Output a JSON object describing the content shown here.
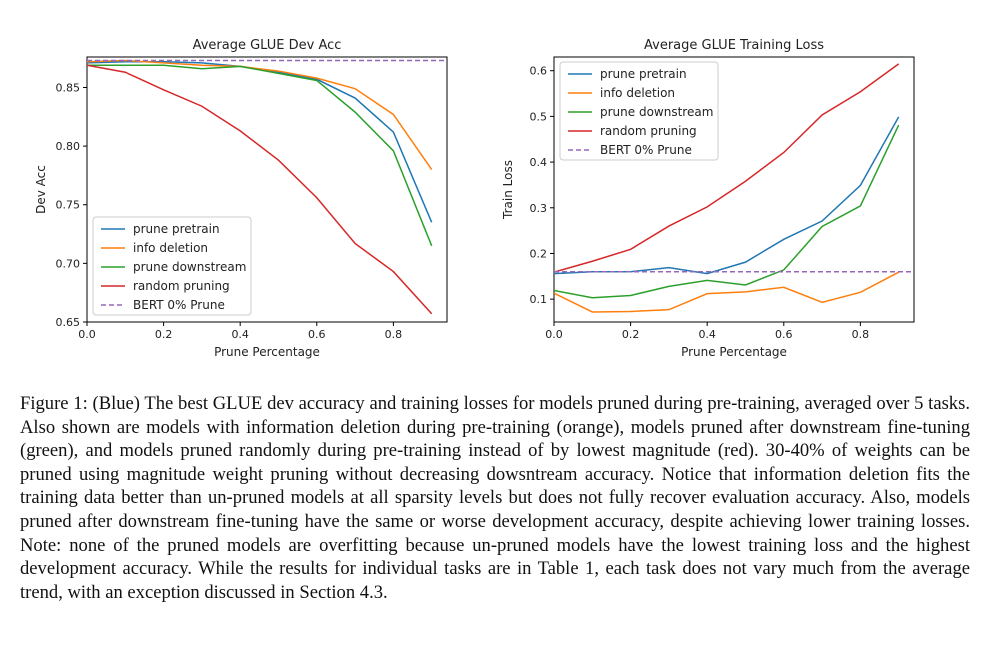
{
  "colors": {
    "prune_pretrain": "#1f77b4",
    "info_deletion": "#ff7f0e",
    "prune_downstream": "#2ca02c",
    "random_pruning": "#d62728",
    "bert_0": "#9467bd"
  },
  "chart_data": [
    {
      "type": "line",
      "title": "Average GLUE Dev Acc",
      "xlabel": "Prune Percentage",
      "ylabel": "Dev Acc",
      "xlim": [
        0.0,
        0.94
      ],
      "ylim": [
        0.65,
        0.876
      ],
      "xticks": [
        0.0,
        0.2,
        0.4,
        0.6,
        0.8
      ],
      "xtick_labels": [
        "0.0",
        "0.2",
        "0.4",
        "0.6",
        "0.8"
      ],
      "yticks": [
        0.65,
        0.7,
        0.75,
        0.8,
        0.85
      ],
      "ytick_labels": [
        "0.65",
        "0.70",
        "0.75",
        "0.80",
        "0.85"
      ],
      "legend_position": "lower-left",
      "x": [
        0.0,
        0.1,
        0.2,
        0.3,
        0.4,
        0.5,
        0.6,
        0.7,
        0.8,
        0.9
      ],
      "series": [
        {
          "name": "prune pretrain",
          "color_key": "prune_pretrain",
          "values": [
            0.871,
            0.872,
            0.872,
            0.871,
            0.868,
            0.863,
            0.857,
            0.841,
            0.812,
            0.735
          ]
        },
        {
          "name": "info deletion",
          "color_key": "info_deletion",
          "values": [
            0.872,
            0.873,
            0.871,
            0.869,
            0.868,
            0.864,
            0.858,
            0.849,
            0.827,
            0.78
          ]
        },
        {
          "name": "prune downstream",
          "color_key": "prune_downstream",
          "values": [
            0.869,
            0.869,
            0.869,
            0.866,
            0.868,
            0.862,
            0.856,
            0.829,
            0.796,
            0.715
          ]
        },
        {
          "name": "random pruning",
          "color_key": "random_pruning",
          "values": [
            0.869,
            0.863,
            0.848,
            0.834,
            0.813,
            0.788,
            0.756,
            0.717,
            0.693,
            0.657
          ]
        },
        {
          "name": "BERT 0% Prune",
          "color_key": "bert_0",
          "dashed": true,
          "values": [
            0.873,
            0.873,
            0.873,
            0.873,
            0.873,
            0.873,
            0.873,
            0.873,
            0.873,
            0.873
          ]
        }
      ]
    },
    {
      "type": "line",
      "title": "Average GLUE Training Loss",
      "xlabel": "Prune Percentage",
      "ylabel": "Train Loss",
      "xlim": [
        0.0,
        0.94
      ],
      "ylim": [
        0.05,
        0.63
      ],
      "xticks": [
        0.0,
        0.2,
        0.4,
        0.6,
        0.8
      ],
      "xtick_labels": [
        "0.0",
        "0.2",
        "0.4",
        "0.6",
        "0.8"
      ],
      "yticks": [
        0.1,
        0.2,
        0.3,
        0.4,
        0.5,
        0.6
      ],
      "ytick_labels": [
        "0.1",
        "0.2",
        "0.3",
        "0.4",
        "0.5",
        "0.6"
      ],
      "legend_position": "upper-left",
      "x": [
        0.0,
        0.1,
        0.2,
        0.3,
        0.4,
        0.5,
        0.6,
        0.7,
        0.8,
        0.9
      ],
      "series": [
        {
          "name": "prune pretrain",
          "color_key": "prune_pretrain",
          "values": [
            0.156,
            0.16,
            0.16,
            0.169,
            0.156,
            0.181,
            0.231,
            0.271,
            0.349,
            0.499
          ]
        },
        {
          "name": "info deletion",
          "color_key": "info_deletion",
          "values": [
            0.113,
            0.072,
            0.073,
            0.077,
            0.112,
            0.116,
            0.126,
            0.093,
            0.115,
            0.159
          ]
        },
        {
          "name": "prune downstream",
          "color_key": "prune_downstream",
          "values": [
            0.119,
            0.103,
            0.108,
            0.128,
            0.141,
            0.131,
            0.164,
            0.259,
            0.304,
            0.481
          ]
        },
        {
          "name": "random pruning",
          "color_key": "random_pruning",
          "values": [
            0.159,
            0.183,
            0.209,
            0.26,
            0.302,
            0.358,
            0.421,
            0.503,
            0.554,
            0.615
          ]
        },
        {
          "name": "BERT 0% Prune",
          "color_key": "bert_0",
          "dashed": true,
          "values": [
            0.16,
            0.16,
            0.16,
            0.16,
            0.16,
            0.16,
            0.16,
            0.16,
            0.16,
            0.16
          ]
        }
      ]
    }
  ],
  "caption": "Figure 1: (Blue) The best GLUE dev accuracy and training losses for models pruned during pre-training, averaged over 5 tasks. Also shown are models with information deletion during pre-training (orange), models pruned after downstream fine-tuning (green), and models pruned randomly during pre-training instead of by lowest magnitude (red). 30-40% of weights can be pruned using magnitude weight pruning without decreasing dowsntream accuracy. Notice that information deletion fits the training data better than un-pruned models at all sparsity levels but does not fully recover evaluation accuracy. Also, models pruned after downstream fine-tuning have the same or worse development accuracy, despite achieving lower training losses. Note: none of the pruned models are overfitting because un-pruned models have the lowest training loss and the highest development accuracy. While the results for individual tasks are in Table 1, each task does not vary much from the average trend, with an exception discussed in Section 4.3."
}
